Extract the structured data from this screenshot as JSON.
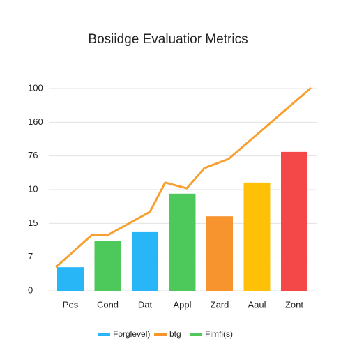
{
  "chart_data": {
    "type": "bar",
    "title": "Bosiidge Evaluatior Metrics",
    "categories": [
      "Pes",
      "Cond",
      "Dat",
      "Appl",
      "Zard",
      "Aaul",
      "Zont"
    ],
    "values": [
      0.7,
      1.49,
      1.74,
      2.88,
      2.21,
      3.21,
      4.12
    ],
    "colors": [
      "#29b6f6",
      "#4cc95a",
      "#29b6f6",
      "#4cc95a",
      "#f7942e",
      "#ffc107",
      "#f44848"
    ],
    "line": {
      "color": "#f7a030",
      "x": [
        -0.39,
        0.58,
        1.01,
        2.13,
        2.54,
        3.12,
        3.59,
        4.24,
        6.45
      ],
      "values": [
        0.7,
        1.66,
        1.66,
        2.34,
        3.21,
        3.04,
        3.64,
        3.91,
        6.02
      ]
    },
    "legend": [
      {
        "name": "Forglevel)",
        "color": "#29b6f6"
      },
      {
        "name": "btg",
        "color": "#f7942e"
      },
      {
        "name": "Fimfi(s)",
        "color": "#4cc95a"
      }
    ],
    "ylim": [
      0,
      6
    ],
    "yticks": [
      0,
      {
        "value": 1,
        "label": "7"
      },
      {
        "value": 2,
        "label": "15"
      },
      {
        "value": 3,
        "label": "10"
      },
      {
        "value": 4,
        "label": "76"
      },
      {
        "value": 5,
        "label": "160"
      },
      {
        "value": 6,
        "label": "100"
      }
    ],
    "grid": true
  }
}
